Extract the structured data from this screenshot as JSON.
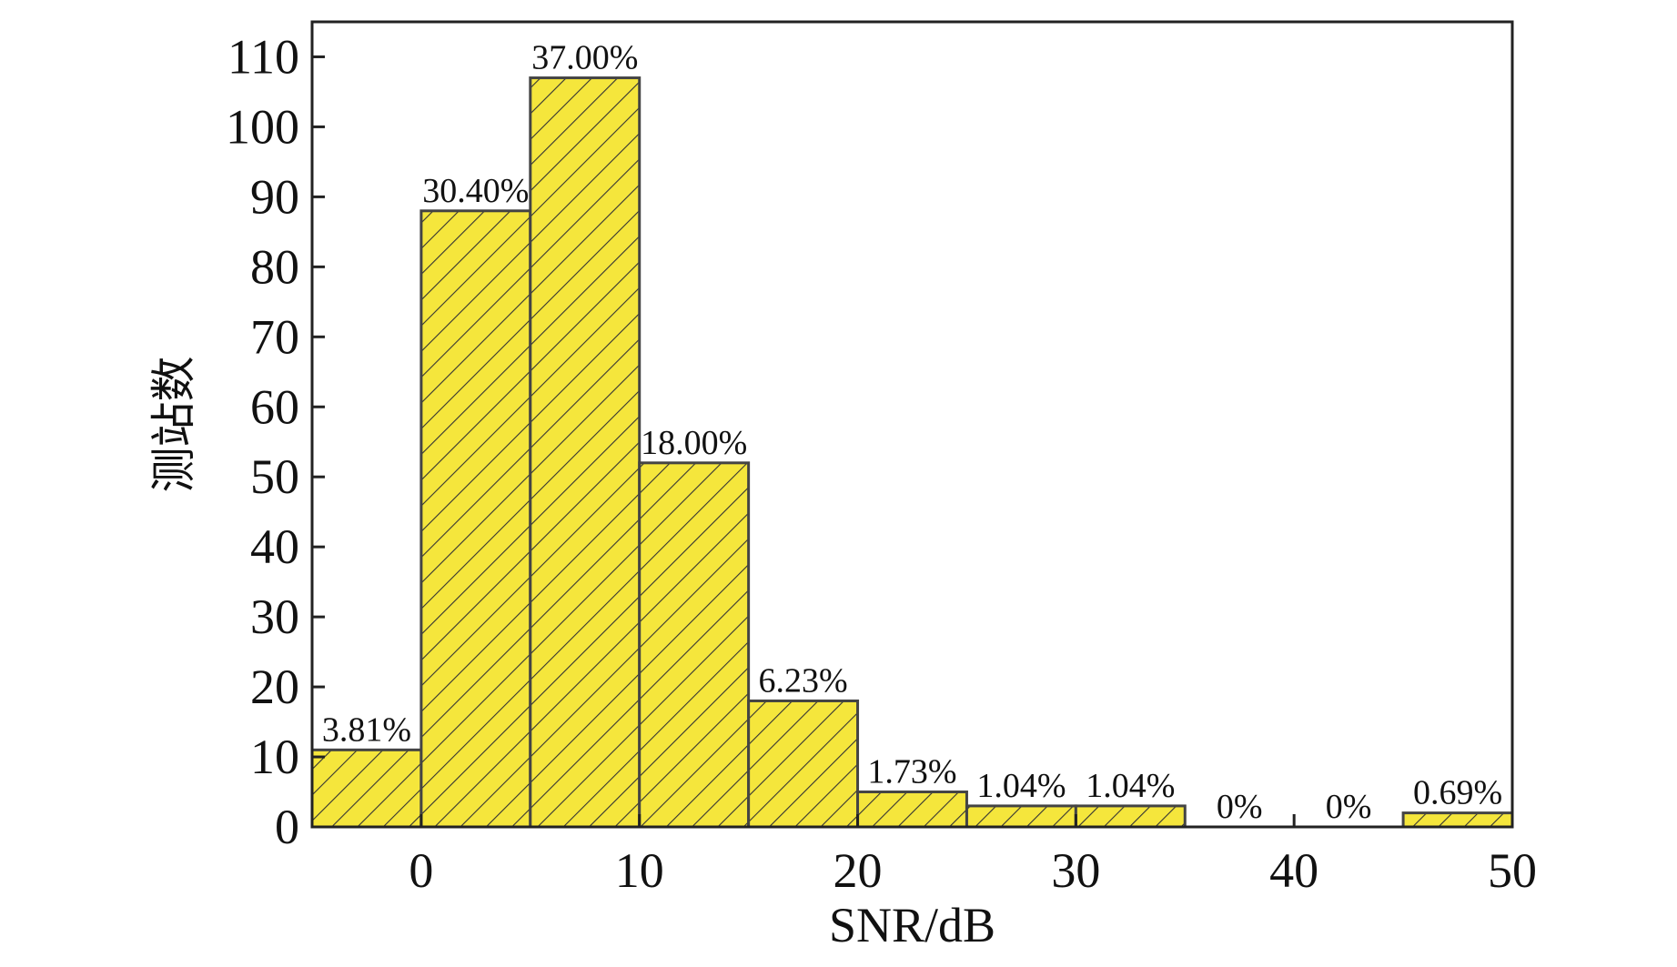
{
  "chart_data": {
    "type": "bar",
    "xlabel": "SNR/dB",
    "ylabel": "测站数",
    "xlim": [
      -5,
      50
    ],
    "ylim": [
      0,
      115
    ],
    "x_ticks": [
      0,
      10,
      20,
      30,
      40,
      50
    ],
    "y_ticks": [
      0,
      10,
      20,
      30,
      40,
      50,
      60,
      70,
      80,
      90,
      100,
      110
    ],
    "grid": false,
    "bar_color": "#f5e63c",
    "bar_edge_color": "#444444",
    "hatch": "diagonal",
    "bins": [
      {
        "start": -5,
        "end": 0,
        "value": 11,
        "label": "3.81%"
      },
      {
        "start": 0,
        "end": 5,
        "value": 88,
        "label": "30.40%"
      },
      {
        "start": 5,
        "end": 10,
        "value": 107,
        "label": "37.00%"
      },
      {
        "start": 10,
        "end": 15,
        "value": 52,
        "label": "18.00%"
      },
      {
        "start": 15,
        "end": 20,
        "value": 18,
        "label": "6.23%"
      },
      {
        "start": 20,
        "end": 25,
        "value": 5,
        "label": "1.73%"
      },
      {
        "start": 25,
        "end": 30,
        "value": 3,
        "label": "1.04%"
      },
      {
        "start": 30,
        "end": 35,
        "value": 3,
        "label": "1.04%"
      },
      {
        "start": 35,
        "end": 40,
        "value": 0,
        "label": "0%"
      },
      {
        "start": 40,
        "end": 45,
        "value": 0,
        "label": "0%"
      },
      {
        "start": 45,
        "end": 50,
        "value": 2,
        "label": "0.69%"
      }
    ]
  }
}
